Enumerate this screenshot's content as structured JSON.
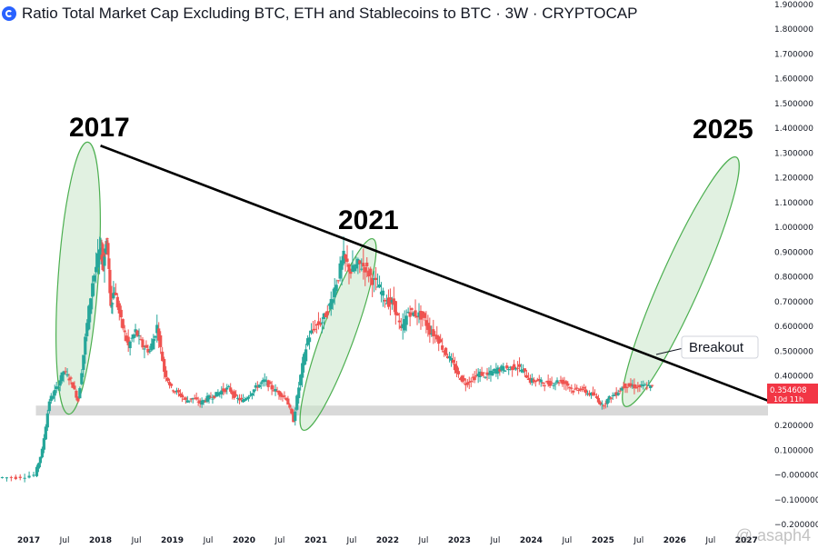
{
  "header": {
    "title": "Ratio Total Market Cap Excluding BTC, ETH and Stablecoins to BTC · 3W · CRYPTOCAP"
  },
  "annotations": {
    "label_2017": "2017",
    "label_2021": "2021",
    "label_2025": "2025",
    "breakout": "Breakout"
  },
  "price_badge": {
    "value": "0.354608",
    "countdown": "10d 11h",
    "color": "#f23645"
  },
  "watermark": "@ asaph4",
  "colors": {
    "up": "#26a69a",
    "down": "#ef5350",
    "ellipse_fill": "#c8e6c9",
    "ellipse_stroke": "#4caf50",
    "support_band": "#d9d9d9",
    "trendline": "#000000"
  },
  "chart_data": {
    "type": "candlestick",
    "title": "Ratio Total Market Cap Excluding BTC, ETH and Stablecoins to BTC · 3W · CRYPTOCAP",
    "y_tick_labels": [
      "1.900000",
      "1.800000",
      "1.700000",
      "1.600000",
      "1.500000",
      "1.400000",
      "1.300000",
      "1.200000",
      "1.100000",
      "1.000000",
      "0.900000",
      "0.800000",
      "0.700000",
      "0.600000",
      "0.500000",
      "0.400000",
      "0.300000",
      "0.200000",
      "0.100000",
      "−0.000000",
      "−0.100000",
      "−0.200000"
    ],
    "ylim": [
      -0.2,
      1.9
    ],
    "x_tick_labels": [
      {
        "label": "2017",
        "t": 2017.0,
        "major": true
      },
      {
        "label": "Jul",
        "t": 2017.5
      },
      {
        "label": "2018",
        "t": 2018.0,
        "major": true
      },
      {
        "label": "Jul",
        "t": 2018.5
      },
      {
        "label": "2019",
        "t": 2019.0,
        "major": true
      },
      {
        "label": "Jul",
        "t": 2019.5
      },
      {
        "label": "2020",
        "t": 2020.0,
        "major": true
      },
      {
        "label": "Jul",
        "t": 2020.5
      },
      {
        "label": "2021",
        "t": 2021.0,
        "major": true
      },
      {
        "label": "Jul",
        "t": 2021.5
      },
      {
        "label": "2022",
        "t": 2022.0,
        "major": true
      },
      {
        "label": "Jul",
        "t": 2022.5
      },
      {
        "label": "2023",
        "t": 2023.0,
        "major": true
      },
      {
        "label": "Jul",
        "t": 2023.5
      },
      {
        "label": "2024",
        "t": 2024.0,
        "major": true
      },
      {
        "label": "Jul",
        "t": 2024.5
      },
      {
        "label": "2025",
        "t": 2025.0,
        "major": true
      },
      {
        "label": "Jul",
        "t": 2025.5
      },
      {
        "label": "2026",
        "t": 2026.0,
        "major": true
      },
      {
        "label": "Jul",
        "t": 2026.5
      },
      {
        "label": "2027",
        "t": 2027.0,
        "major": true
      }
    ],
    "xlim": [
      2016.6,
      2027.3
    ],
    "close_series": {
      "t": [
        2016.6,
        2016.85,
        2017.1,
        2017.2,
        2017.3,
        2017.4,
        2017.5,
        2017.6,
        2017.7,
        2017.8,
        2017.9,
        2018.0,
        2018.05,
        2018.1,
        2018.15,
        2018.2,
        2018.3,
        2018.4,
        2018.5,
        2018.6,
        2018.7,
        2018.8,
        2018.9,
        2019.0,
        2019.1,
        2019.2,
        2019.3,
        2019.4,
        2019.5,
        2019.6,
        2019.7,
        2019.8,
        2019.9,
        2020.0,
        2020.1,
        2020.2,
        2020.3,
        2020.4,
        2020.5,
        2020.6,
        2020.7,
        2020.8,
        2020.9,
        2021.0,
        2021.1,
        2021.2,
        2021.3,
        2021.4,
        2021.5,
        2021.6,
        2021.7,
        2021.8,
        2021.9,
        2022.0,
        2022.1,
        2022.2,
        2022.3,
        2022.4,
        2022.5,
        2022.6,
        2022.7,
        2022.8,
        2022.9,
        2023.0,
        2023.1,
        2023.2,
        2023.3,
        2023.4,
        2023.5,
        2023.6,
        2023.7,
        2023.8,
        2023.9,
        2024.0,
        2024.1,
        2024.2,
        2024.3,
        2024.4,
        2024.5,
        2024.6,
        2024.7,
        2024.8,
        2024.9,
        2025.0,
        2025.1,
        2025.2,
        2025.3,
        2025.4,
        2025.5,
        2025.6,
        2025.7
      ],
      "close": [
        -0.01,
        -0.01,
        0.0,
        0.1,
        0.3,
        0.35,
        0.42,
        0.38,
        0.3,
        0.55,
        0.78,
        0.9,
        0.87,
        0.95,
        0.68,
        0.75,
        0.62,
        0.52,
        0.58,
        0.52,
        0.5,
        0.6,
        0.42,
        0.35,
        0.33,
        0.3,
        0.31,
        0.29,
        0.31,
        0.32,
        0.34,
        0.35,
        0.31,
        0.3,
        0.33,
        0.36,
        0.38,
        0.35,
        0.33,
        0.31,
        0.22,
        0.4,
        0.55,
        0.6,
        0.62,
        0.68,
        0.78,
        0.88,
        0.82,
        0.85,
        0.84,
        0.79,
        0.75,
        0.7,
        0.69,
        0.58,
        0.66,
        0.65,
        0.64,
        0.58,
        0.56,
        0.5,
        0.46,
        0.4,
        0.37,
        0.39,
        0.41,
        0.4,
        0.42,
        0.43,
        0.43,
        0.44,
        0.42,
        0.38,
        0.38,
        0.37,
        0.37,
        0.38,
        0.37,
        0.34,
        0.35,
        0.33,
        0.32,
        0.28,
        0.31,
        0.33,
        0.36,
        0.36,
        0.355,
        0.36,
        0.355
      ]
    },
    "trendline": {
      "from": [
        2018.0,
        1.33
      ],
      "to": [
        2027.3,
        0.3
      ]
    },
    "support_band": {
      "ymin": 0.24,
      "ymax": 0.28
    },
    "current_value": 0.354608
  }
}
